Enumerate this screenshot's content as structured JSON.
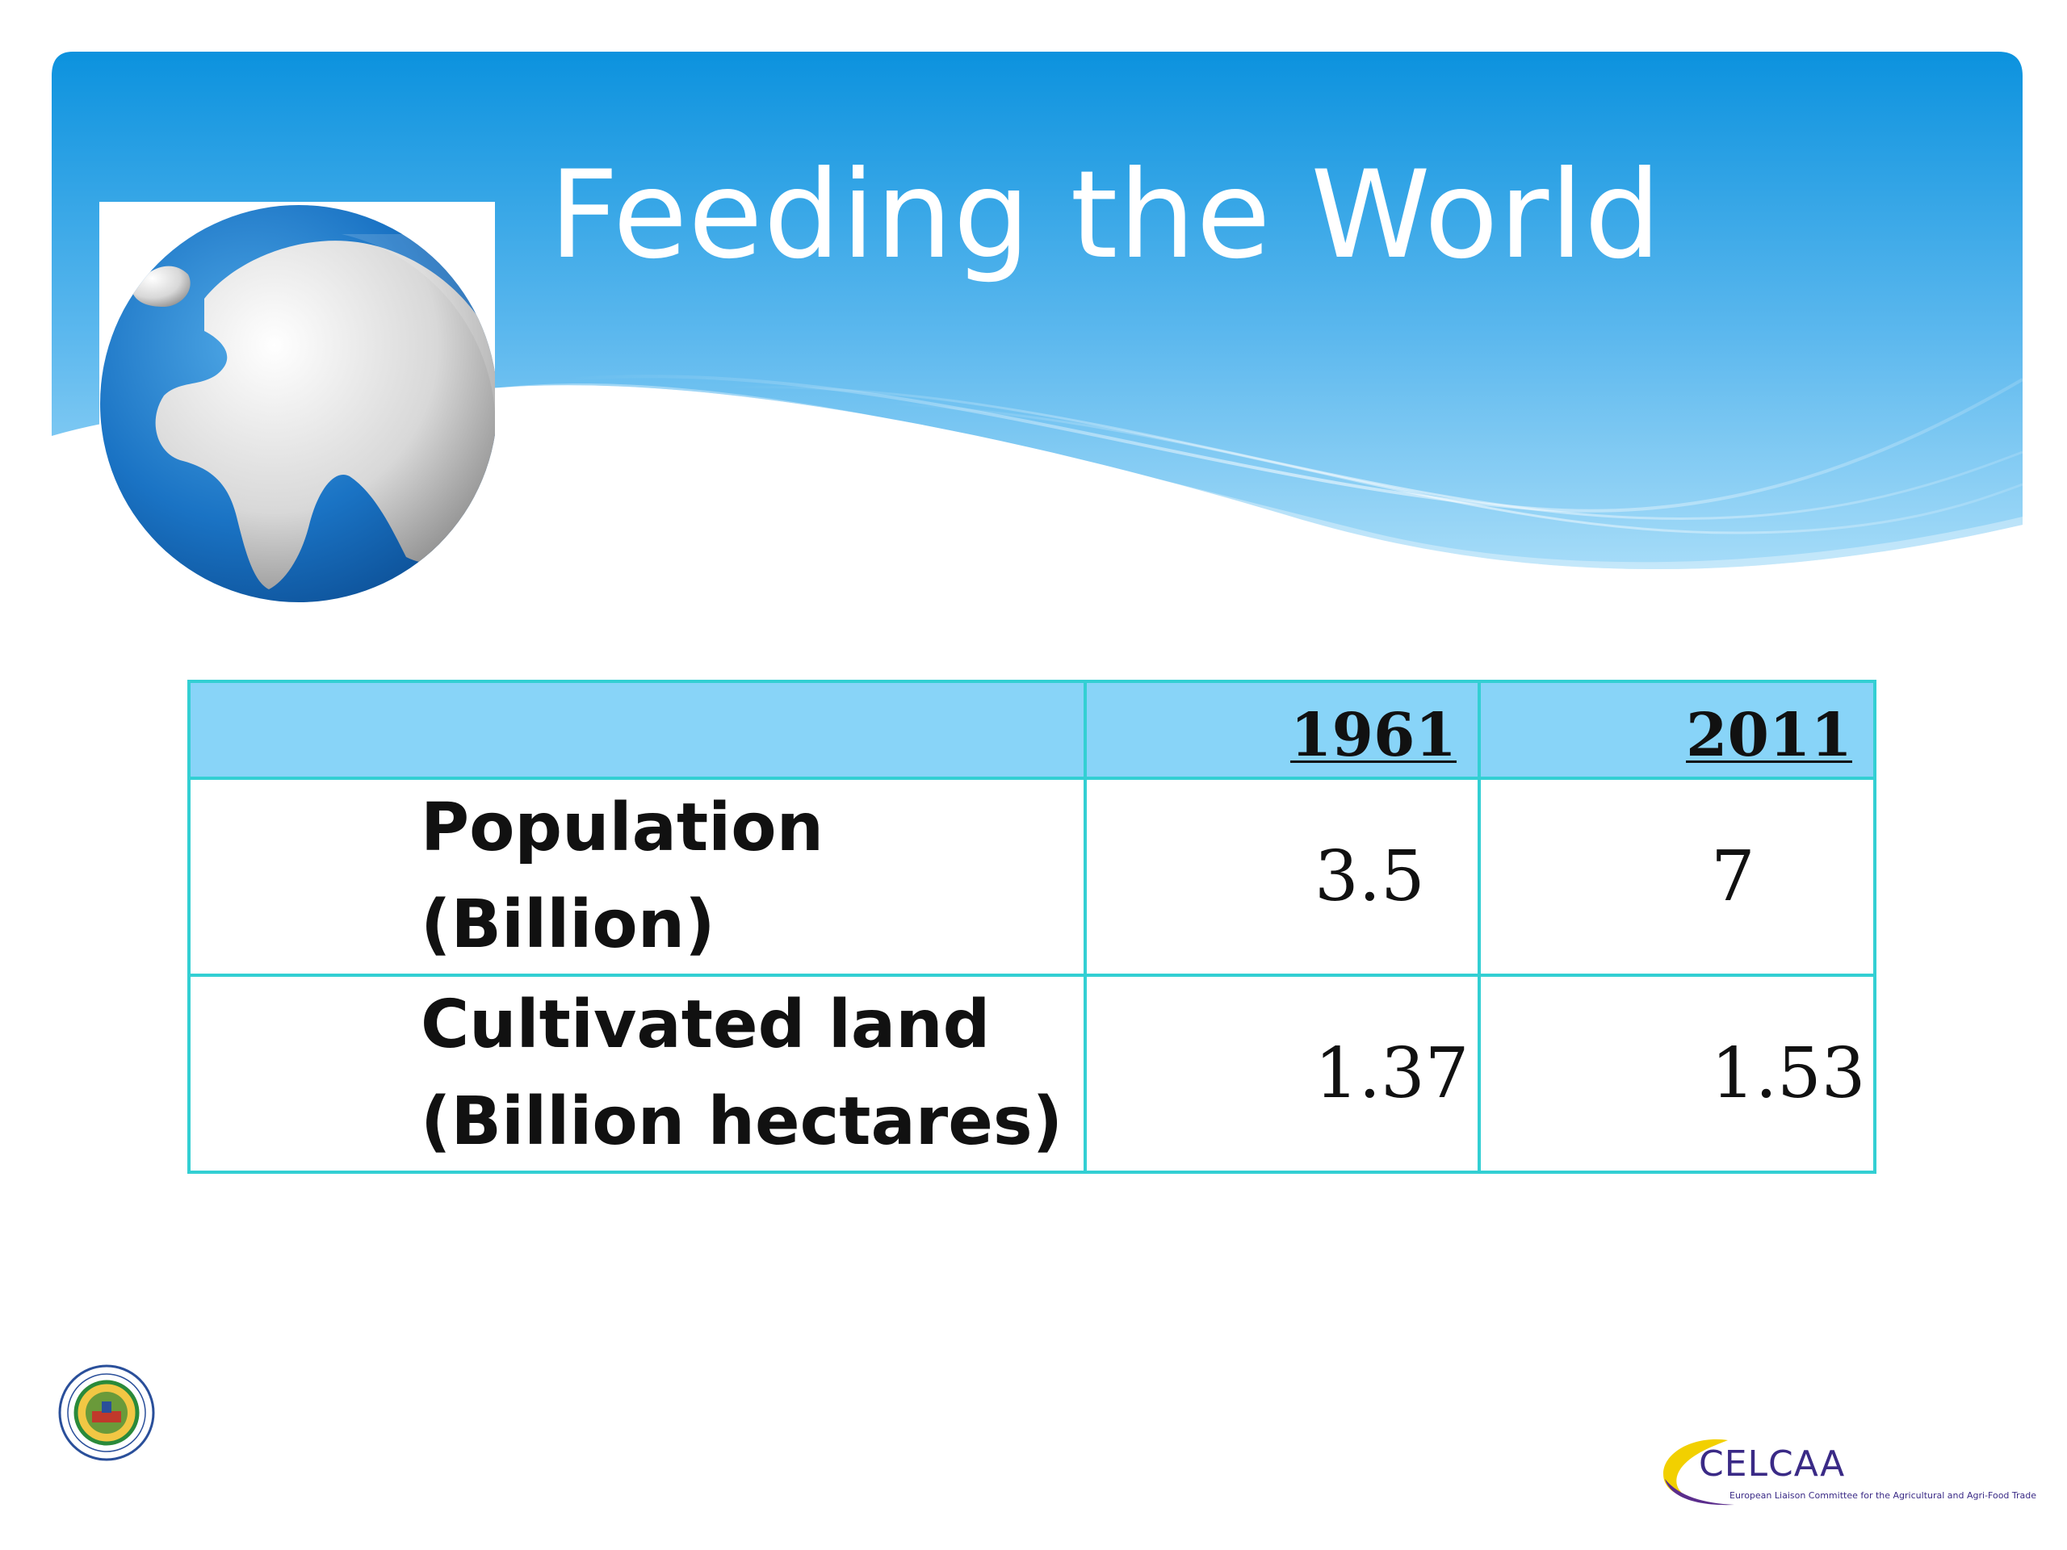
{
  "slide": {
    "title": "Feeding the World"
  },
  "table": {
    "headers": [
      "",
      "1961",
      "2011"
    ],
    "rows": [
      {
        "label_line1": "Population",
        "label_line2": "(Billion)",
        "v1961": "3.5",
        "v2011": "7"
      },
      {
        "label_line1": "Cultivated land",
        "label_line2": "(Billion hectares)",
        "v1961": "1.37",
        "v2011": "1.53"
      }
    ]
  },
  "logos": {
    "celcaa_name": "CELCAA",
    "celcaa_tagline": "European Liaison Committee for the Agricultural and Agri-Food Trade"
  },
  "colors": {
    "banner_blue": "#1296e0",
    "header_fill": "#88d4f8",
    "table_border": "#33cfd3"
  }
}
